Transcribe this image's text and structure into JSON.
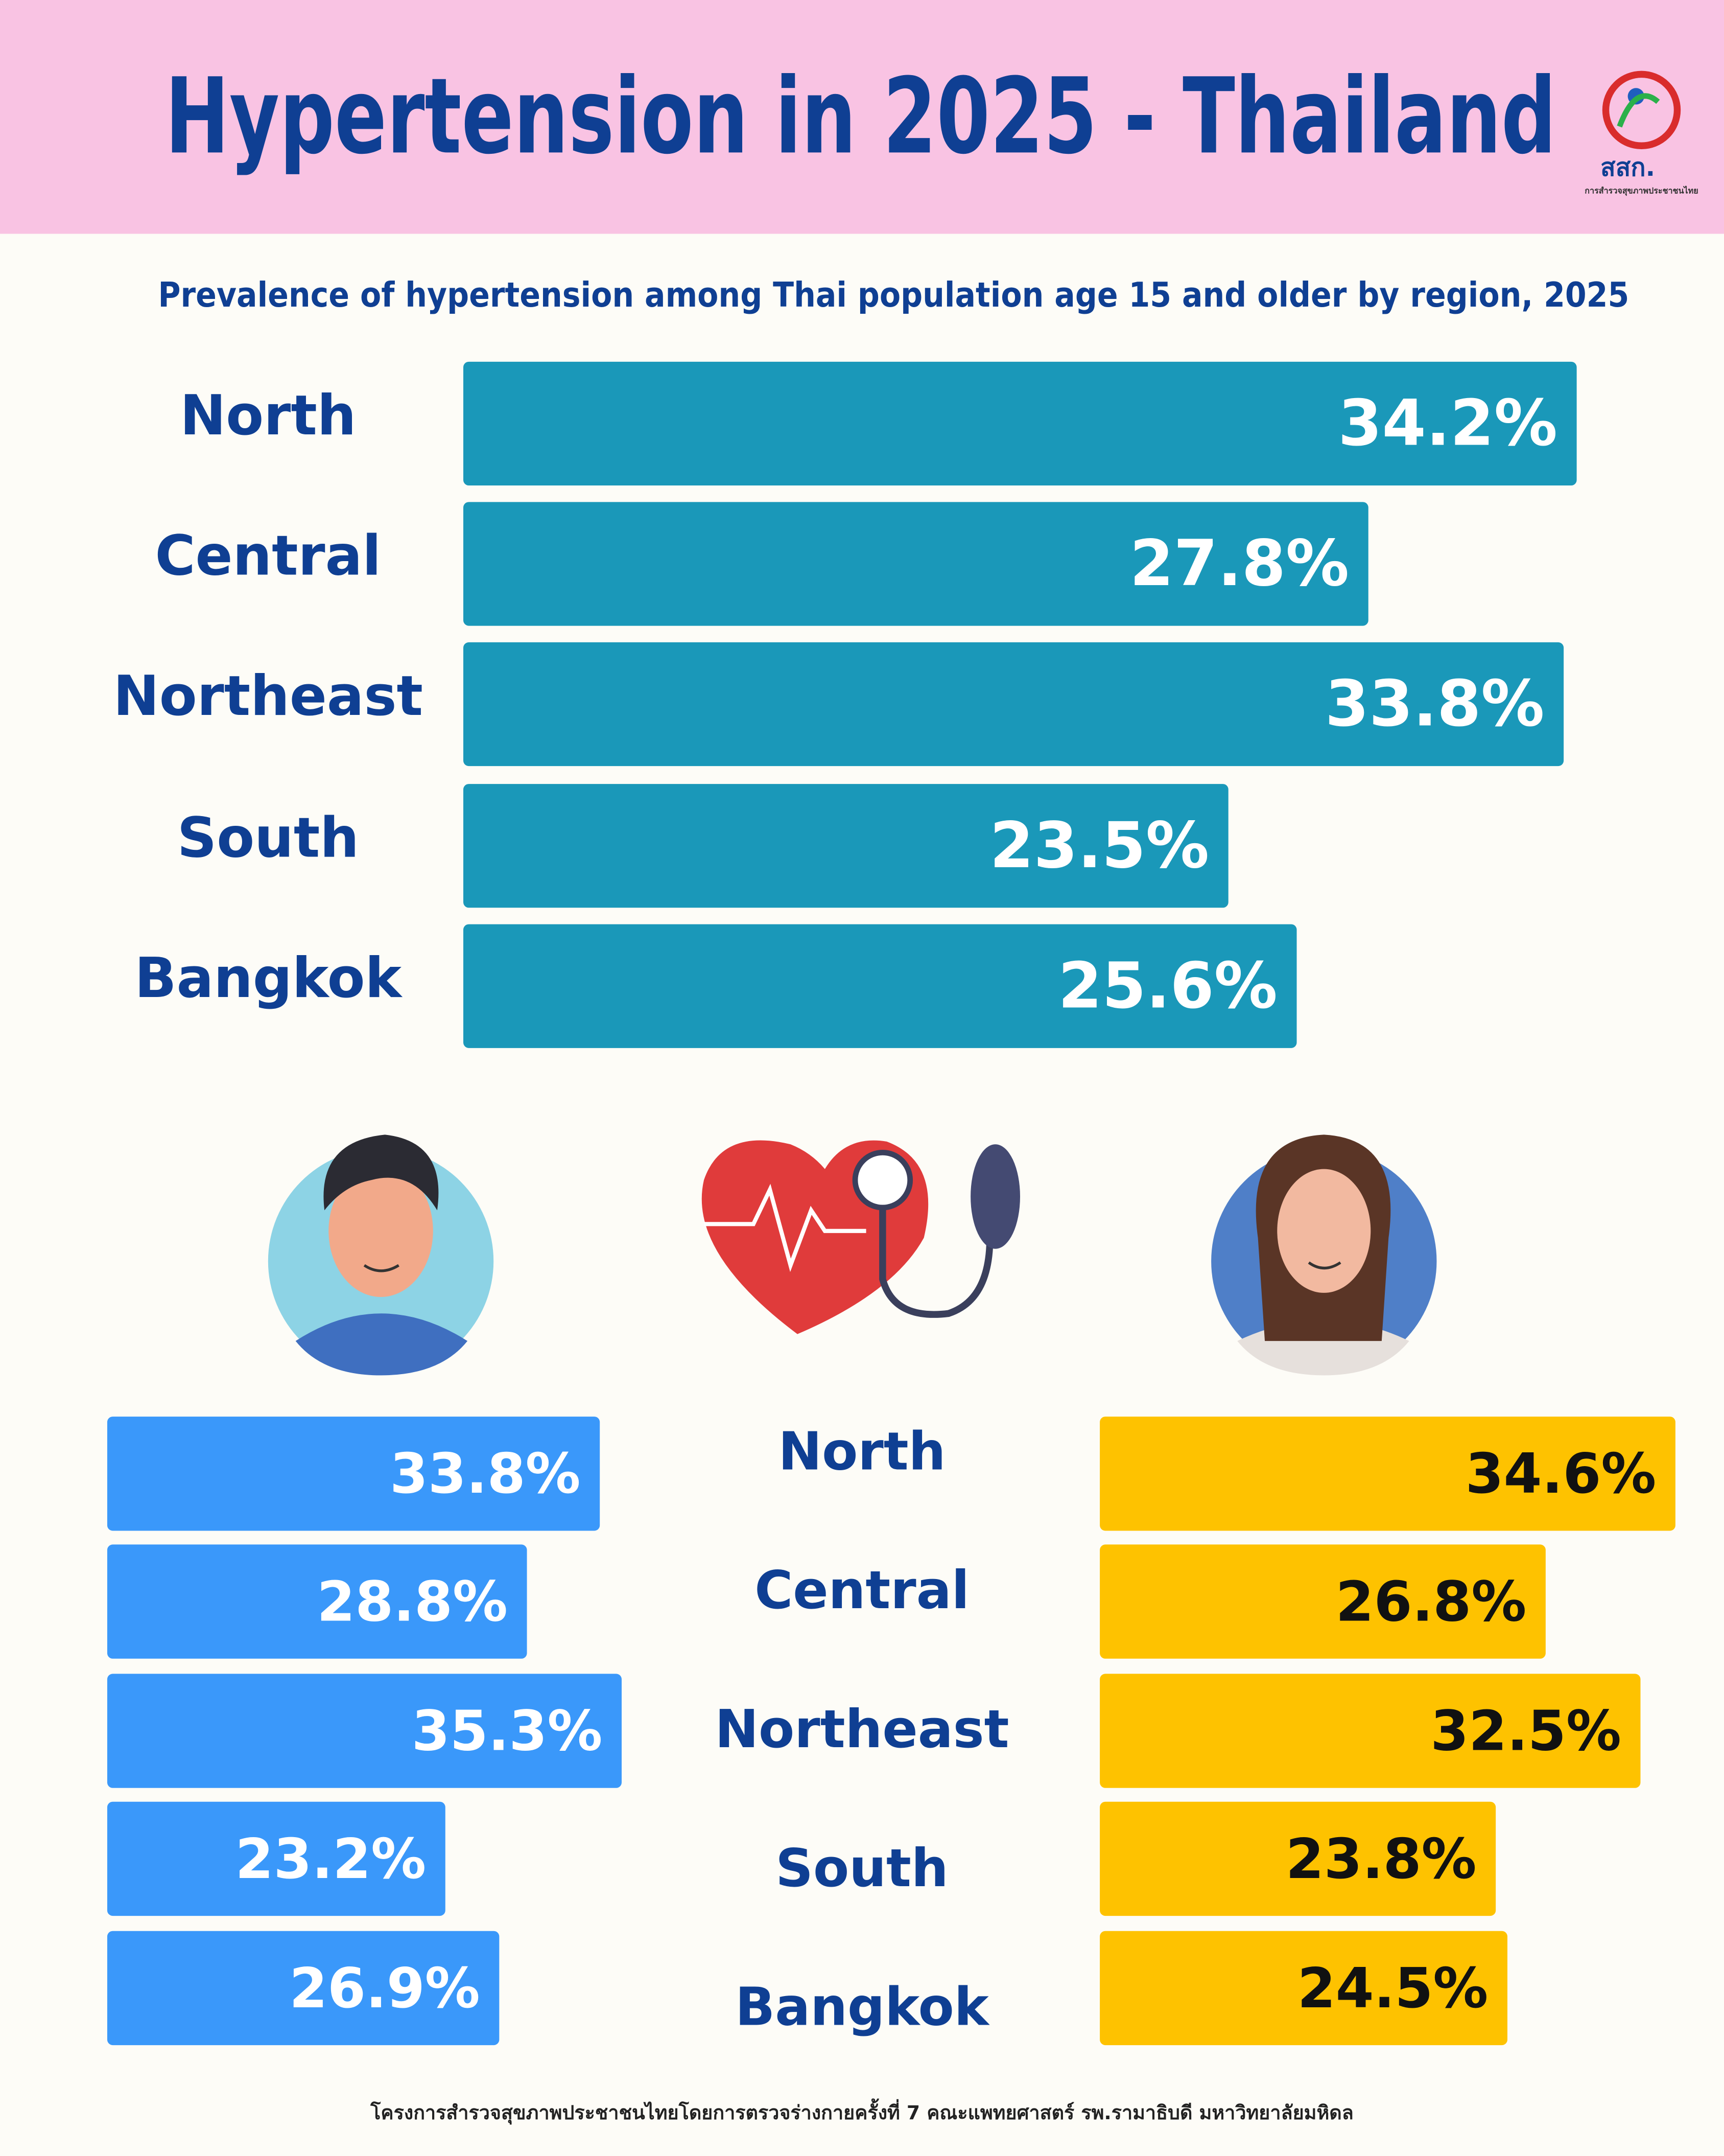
{
  "header": {
    "title": "Hypertension in 2025 - Thailand",
    "logo_text": "สสก.",
    "logo_subtext": "การสำรวจสุขภาพประชาชนไทย"
  },
  "chart_data": [
    {
      "type": "bar",
      "orientation": "horizontal",
      "subtitle": "Prevalence of  hypertension among Thai population age 15 and older  by region, 2025",
      "categories": [
        "North",
        "Central",
        "Northeast",
        "South",
        "Bangkok"
      ],
      "values": [
        34.2,
        27.8,
        33.8,
        23.5,
        25.6
      ],
      "value_labels": [
        "34.2%",
        "27.8%",
        "33.8%",
        "23.5%",
        "25.6%"
      ],
      "color": "#1a98b9",
      "label_color": "#ffffff",
      "xlim": [
        0,
        36
      ]
    },
    {
      "type": "bar",
      "orientation": "horizontal",
      "categories": [
        "North",
        "Central",
        "Northeast",
        "South",
        "Bangkok"
      ],
      "series": [
        {
          "color": "#3a98fa",
          "label_color": "#ffffff",
          "xlim": [
            0,
            36
          ],
          "values": [
            33.8,
            28.8,
            35.3,
            23.2,
            26.9
          ],
          "value_labels": [
            "33.8%",
            "28.8%",
            "35.3%",
            "23.2%",
            "26.9%"
          ]
        },
        {
          "color": "#fec200",
          "label_color": "#111111",
          "xlim": [
            0,
            36
          ],
          "values": [
            34.6,
            26.8,
            32.5,
            23.8,
            24.5
          ],
          "value_labels": [
            "34.6%",
            "26.8%",
            "32.5%",
            "23.8%",
            "24.5%"
          ]
        }
      ]
    }
  ],
  "footer": "โครงการสำรวจสุขภาพประชาชนไทยโดยการตรวจร่างกายครั้งที่ 7 คณะแพทยศาสตร์ รพ.รามาธิบดี มหาวิทยาลัยมหิดล"
}
